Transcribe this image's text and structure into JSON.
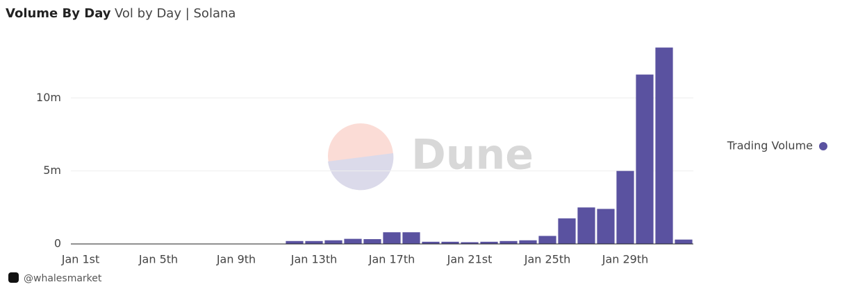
{
  "chart_data": {
    "type": "bar",
    "title": "Volume By Day",
    "subtitle": "Vol by Day | Solana",
    "categories": [
      "Jan 1st",
      null,
      null,
      null,
      "Jan 5th",
      null,
      null,
      null,
      "Jan 9th",
      null,
      null,
      null,
      "Jan 13th",
      null,
      null,
      null,
      "Jan 17th",
      null,
      null,
      null,
      "Jan 21st",
      null,
      null,
      null,
      "Jan 25th",
      null,
      null,
      null,
      "Jan 29th",
      null,
      null,
      null
    ],
    "series": [
      {
        "name": "Trading Volume",
        "color": "#5a52a0",
        "values": [
          0,
          0,
          0,
          0,
          0,
          0,
          0,
          0,
          0,
          0,
          0,
          200000,
          200000,
          250000,
          350000,
          330000,
          800000,
          800000,
          150000,
          150000,
          120000,
          150000,
          200000,
          250000,
          550000,
          1750000,
          2500000,
          2400000,
          5000000,
          11600000,
          13450000,
          300000
        ]
      }
    ],
    "ylim": [
      0,
      14000000
    ],
    "yticks": [
      0,
      {
        "value": 5000000,
        "label": "5m"
      },
      {
        "value": 10000000,
        "label": "10m"
      }
    ],
    "grid": true,
    "legend": "right",
    "watermark": "Dune",
    "footer": "@whalesmarket"
  }
}
